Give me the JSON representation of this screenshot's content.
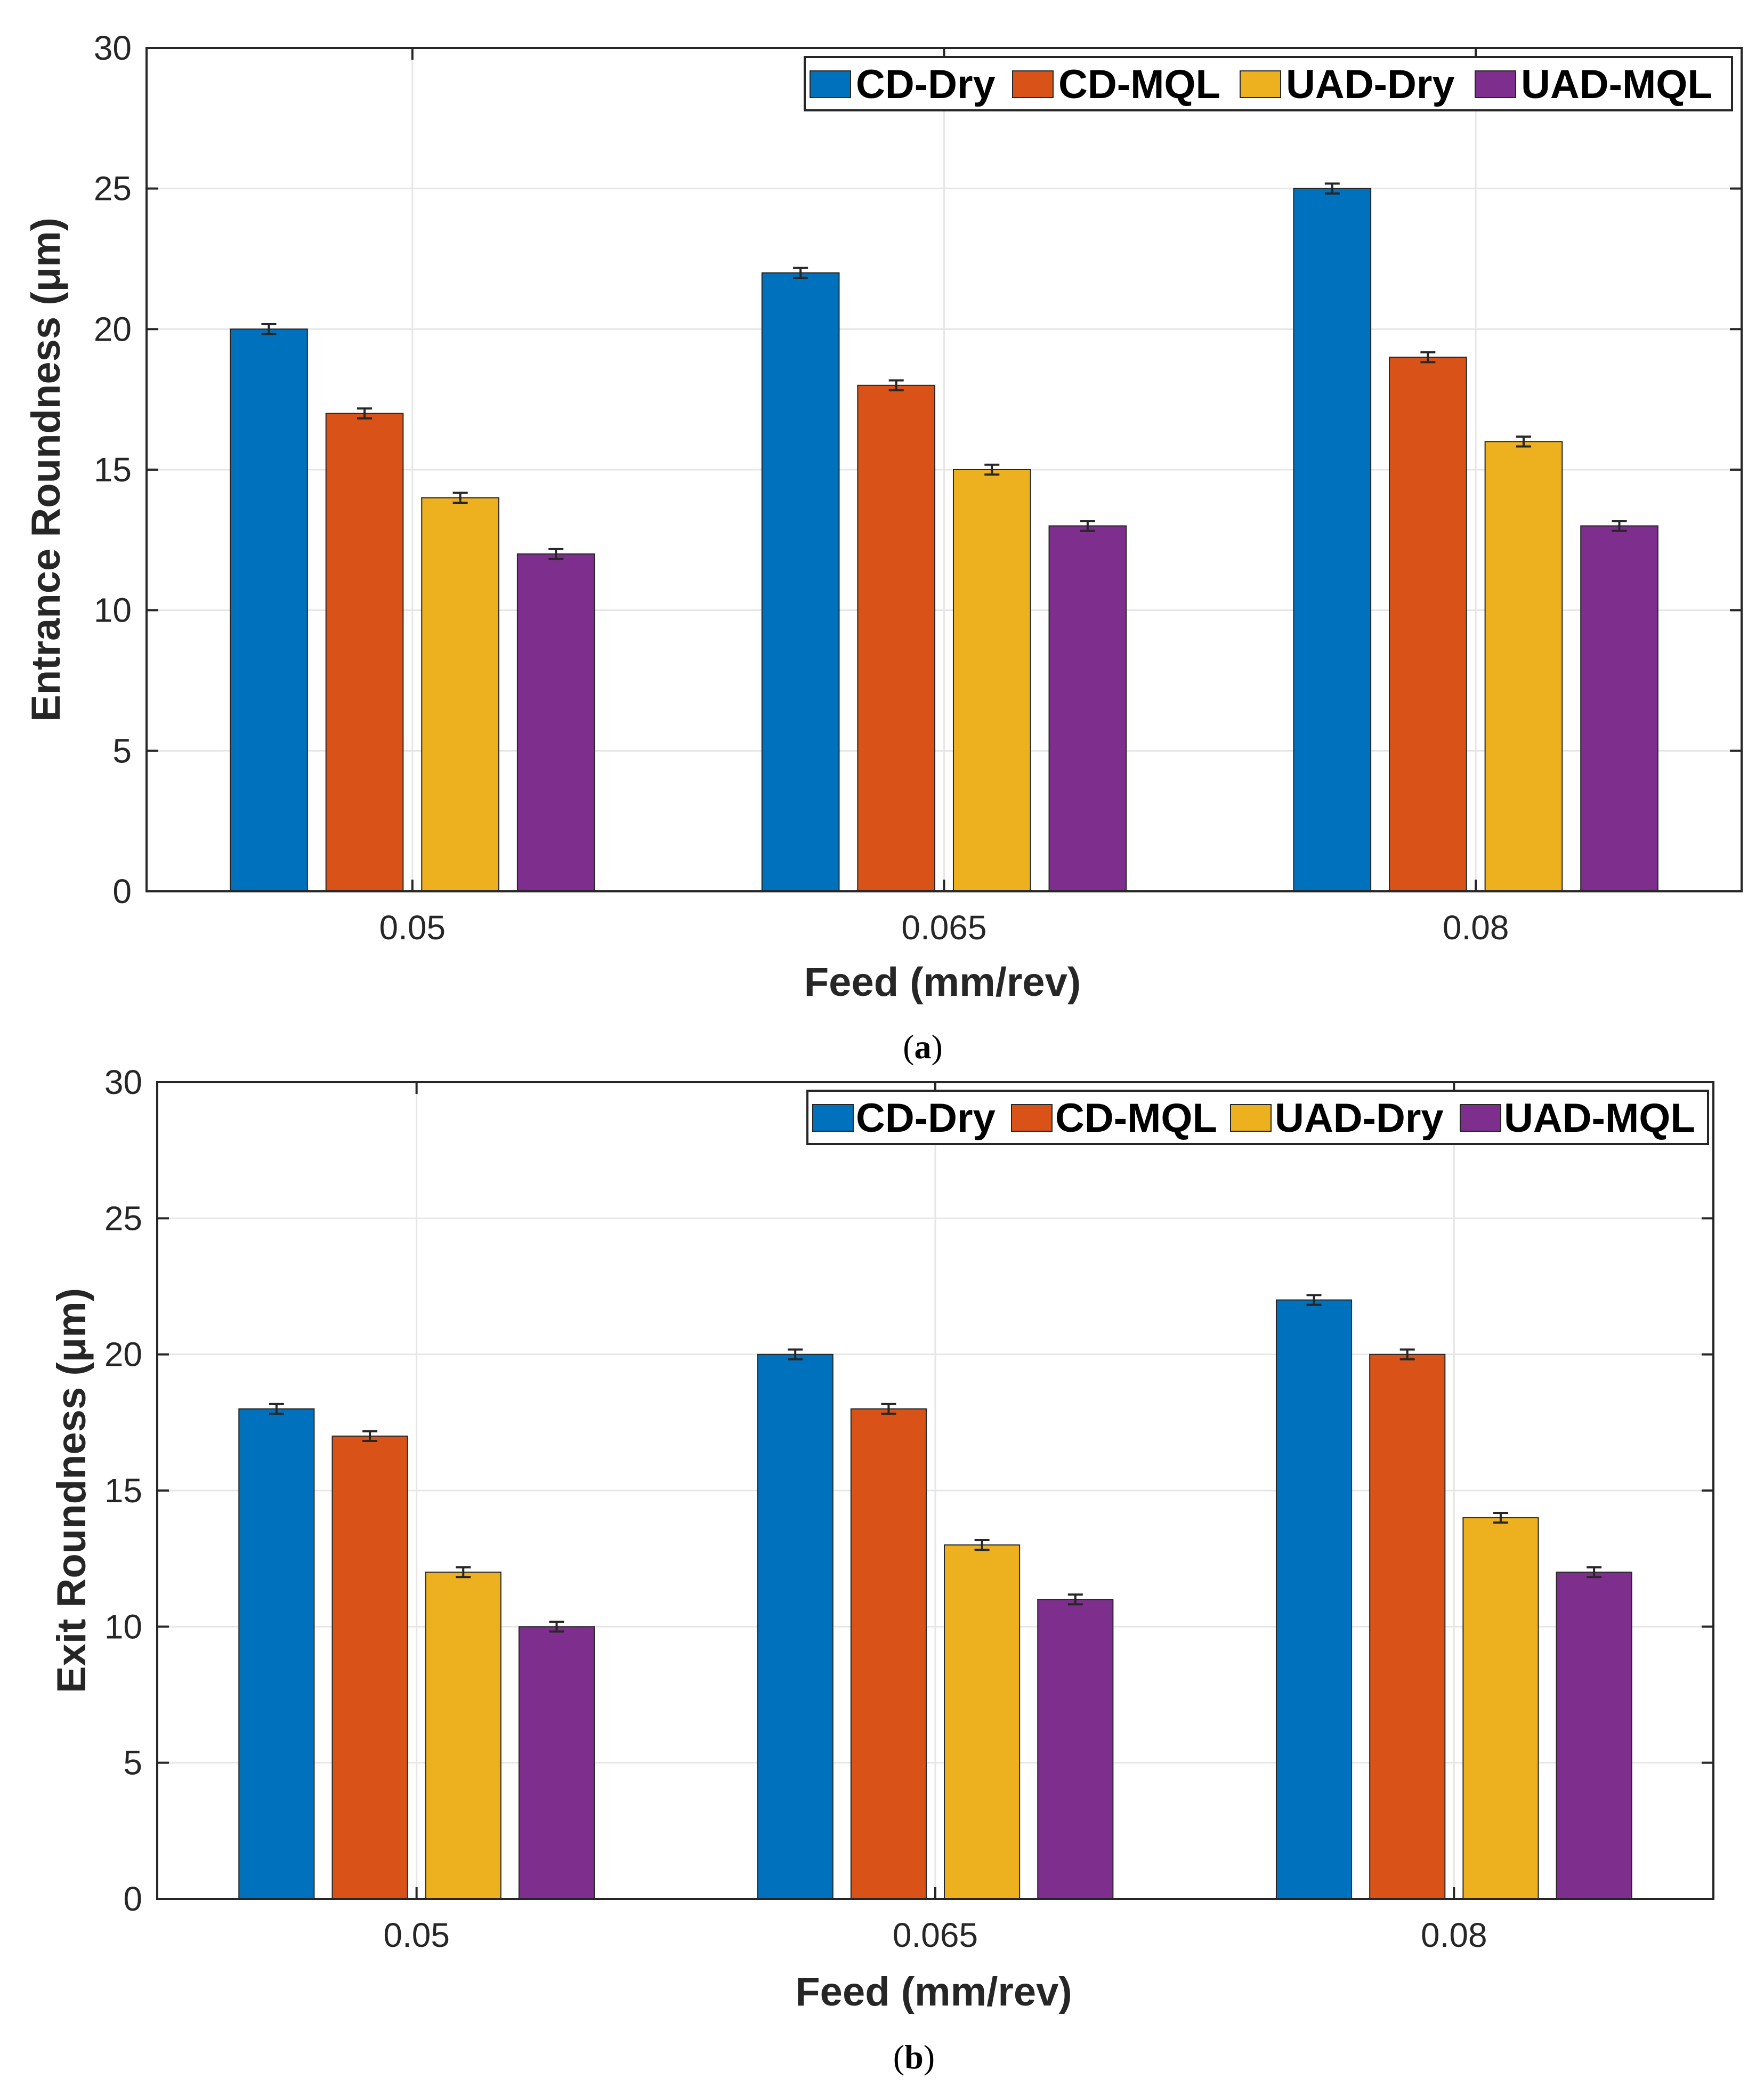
{
  "series_colors": [
    "#0072BD",
    "#D95319",
    "#EDB120",
    "#7E2F8E"
  ],
  "chart_data": [
    {
      "type": "bar",
      "panel": "a",
      "caption": "(a)",
      "caption_letter": "a",
      "categories": [
        "0.05",
        "0.065",
        "0.08"
      ],
      "series": [
        {
          "name": "CD-Dry",
          "values": [
            20,
            22,
            25
          ]
        },
        {
          "name": "CD-MQL",
          "values": [
            17,
            18,
            19
          ]
        },
        {
          "name": "UAD-Dry",
          "values": [
            14,
            15,
            16
          ]
        },
        {
          "name": "UAD-MQL",
          "values": [
            12,
            13,
            13
          ]
        }
      ],
      "error": 0.1,
      "xlabel": "Feed (mm/rev)",
      "ylabel": "Entrance Roundness  (μm)",
      "ylim": [
        0,
        30
      ],
      "yticks": [
        "0",
        "5",
        "10",
        "15",
        "20",
        "25",
        "30"
      ],
      "grid": true,
      "legend_location": "top-right, horizontal"
    },
    {
      "type": "bar",
      "panel": "b",
      "caption": "(b)",
      "caption_letter": "b",
      "categories": [
        "0.05",
        "0.065",
        "0.08"
      ],
      "series": [
        {
          "name": "CD-Dry",
          "values": [
            18,
            20,
            22
          ]
        },
        {
          "name": "CD-MQL",
          "values": [
            17,
            18,
            20
          ]
        },
        {
          "name": "UAD-Dry",
          "values": [
            12,
            13,
            14
          ]
        },
        {
          "name": "UAD-MQL",
          "values": [
            10,
            11,
            12
          ]
        }
      ],
      "error": 0.1,
      "xlabel": "Feed (mm/rev)",
      "ylabel": "Exit Roundness  (μm)",
      "ylim": [
        0,
        30
      ],
      "yticks": [
        "0",
        "5",
        "10",
        "15",
        "20",
        "25",
        "30"
      ],
      "grid": true,
      "legend_location": "top-right, horizontal"
    }
  ]
}
